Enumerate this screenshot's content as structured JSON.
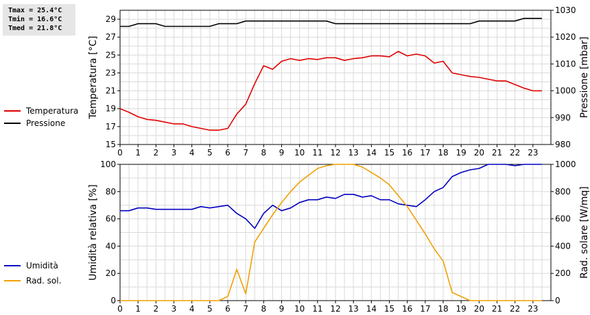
{
  "stats": {
    "tmax": "Tmax = 25.4°C",
    "tmin": "Tmin = 16.6°C",
    "tmed": "Tmed = 21.8°C"
  },
  "chart_data": [
    {
      "type": "line",
      "xlim": [
        0,
        24
      ],
      "x_ticks": [
        "0",
        "1",
        "2",
        "3",
        "4",
        "5",
        "6",
        "7",
        "8",
        "9",
        "10",
        "11",
        "12",
        "13",
        "14",
        "15",
        "16",
        "17",
        "18",
        "19",
        "20",
        "21",
        "22",
        "23"
      ],
      "ylabel_left": "Temperatura [°C]",
      "ylabel_right": "Pressione [mbar]",
      "ylim_left": [
        15,
        30
      ],
      "ylim_right": [
        980,
        1030
      ],
      "yticks_left": [
        "15",
        "17",
        "19",
        "21",
        "23",
        "25",
        "27",
        "29"
      ],
      "yticks_right": [
        "980",
        "990",
        "1000",
        "1010",
        "1020",
        "1030"
      ],
      "grid": true,
      "series": [
        {
          "name": "Temperatura",
          "color": "#e00000",
          "axis": "left",
          "x": [
            0,
            0.5,
            1,
            1.5,
            2,
            2.5,
            3,
            3.5,
            4,
            4.5,
            5,
            5.5,
            6,
            6.5,
            7,
            7.5,
            8,
            8.5,
            9,
            9.5,
            10,
            10.5,
            11,
            11.5,
            12,
            12.5,
            13,
            13.5,
            14,
            14.5,
            15,
            15.5,
            16,
            16.5,
            17,
            17.5,
            18,
            18.5,
            19,
            19.5,
            20,
            20.5,
            21,
            21.5,
            22,
            22.5,
            23,
            23.5
          ],
          "y": [
            19.0,
            18.6,
            18.1,
            17.8,
            17.7,
            17.5,
            17.3,
            17.3,
            17.0,
            16.8,
            16.6,
            16.6,
            16.8,
            18.4,
            19.5,
            21.8,
            23.8,
            23.4,
            24.3,
            24.6,
            24.4,
            24.6,
            24.5,
            24.7,
            24.7,
            24.4,
            24.6,
            24.7,
            24.9,
            24.9,
            24.8,
            25.4,
            24.9,
            25.1,
            24.9,
            24.1,
            24.3,
            23.0,
            22.8,
            22.6,
            22.5,
            22.3,
            22.1,
            22.1,
            21.7,
            21.3,
            21.0,
            21.0
          ]
        },
        {
          "name": "Pressione",
          "color": "#000000",
          "axis": "right",
          "x": [
            0,
            0.5,
            1,
            1.5,
            2,
            2.5,
            3,
            3.5,
            4,
            4.5,
            5,
            5.5,
            6,
            6.5,
            7,
            7.5,
            8,
            8.5,
            9,
            9.5,
            10,
            10.5,
            11,
            11.5,
            12,
            12.5,
            13,
            13.5,
            14,
            14.5,
            15,
            15.5,
            16,
            16.5,
            17,
            17.5,
            18,
            18.5,
            19,
            19.5,
            20,
            20.5,
            21,
            21.5,
            22,
            22.5,
            23,
            23.5
          ],
          "y": [
            1024,
            1024,
            1025,
            1025,
            1025,
            1024,
            1024,
            1024,
            1024,
            1024,
            1024,
            1025,
            1025,
            1025,
            1026,
            1026,
            1026,
            1026,
            1026,
            1026,
            1026,
            1026,
            1026,
            1026,
            1025,
            1025,
            1025,
            1025,
            1025,
            1025,
            1025,
            1025,
            1025,
            1025,
            1025,
            1025,
            1025,
            1025,
            1025,
            1025,
            1026,
            1026,
            1026,
            1026,
            1026,
            1027,
            1027,
            1027
          ]
        }
      ]
    },
    {
      "type": "line",
      "xlim": [
        0,
        24
      ],
      "x_ticks": [
        "0",
        "1",
        "2",
        "3",
        "4",
        "5",
        "6",
        "7",
        "8",
        "9",
        "10",
        "11",
        "12",
        "13",
        "14",
        "15",
        "16",
        "17",
        "18",
        "19",
        "20",
        "21",
        "22",
        "23"
      ],
      "ylabel_left": "Umidità relativa [%]",
      "ylabel_right": "Rad. solare [W/mq]",
      "ylim_left": [
        0,
        100
      ],
      "ylim_right": [
        0,
        1000
      ],
      "yticks_left": [
        "0",
        "20",
        "40",
        "60",
        "80",
        "100"
      ],
      "yticks_right": [
        "0",
        "200",
        "400",
        "600",
        "800",
        "1000"
      ],
      "grid": true,
      "series": [
        {
          "name": "Umidità",
          "color": "#0000c0",
          "axis": "left",
          "x": [
            0,
            0.5,
            1,
            1.5,
            2,
            2.5,
            3,
            3.5,
            4,
            4.5,
            5,
            5.5,
            6,
            6.5,
            7,
            7.5,
            8,
            8.5,
            9,
            9.5,
            10,
            10.5,
            11,
            11.5,
            12,
            12.5,
            13,
            13.5,
            14,
            14.5,
            15,
            15.5,
            16,
            16.5,
            17,
            17.5,
            18,
            18.5,
            19,
            19.5,
            20,
            20.5,
            21,
            21.5,
            22,
            22.5,
            23,
            23.5
          ],
          "y": [
            66,
            66,
            68,
            68,
            67,
            67,
            67,
            67,
            67,
            69,
            68,
            69,
            70,
            64,
            60,
            53,
            64,
            70,
            66,
            68,
            72,
            74,
            74,
            76,
            75,
            78,
            78,
            76,
            77,
            74,
            74,
            71,
            70,
            69,
            74,
            80,
            83,
            91,
            94,
            96,
            97,
            100,
            100,
            100,
            99,
            100,
            100,
            100
          ]
        },
        {
          "name": "Rad. sol.",
          "color": "#f0a000",
          "axis": "right",
          "x": [
            0,
            0.5,
            1,
            1.5,
            2,
            2.5,
            3,
            3.5,
            4,
            4.5,
            5,
            5.5,
            6,
            6.5,
            7,
            7.5,
            8,
            8.5,
            9,
            9.5,
            10,
            10.5,
            11,
            11.5,
            12,
            12.5,
            13,
            13.5,
            14,
            14.5,
            15,
            15.5,
            16,
            16.5,
            17,
            17.5,
            18,
            18.5,
            19,
            19.5,
            20,
            20.5,
            21,
            21.5,
            22,
            22.5,
            23,
            23.5
          ],
          "y": [
            0,
            0,
            0,
            0,
            0,
            0,
            0,
            0,
            0,
            0,
            0,
            0,
            30,
            230,
            50,
            430,
            530,
            630,
            720,
            800,
            870,
            920,
            970,
            990,
            1000,
            1000,
            1000,
            980,
            940,
            900,
            850,
            770,
            690,
            590,
            490,
            380,
            290,
            60,
            30,
            0,
            0,
            0,
            0,
            0,
            0,
            0,
            0,
            0
          ]
        }
      ]
    }
  ],
  "legend": {
    "top": [
      {
        "label": "Temperatura",
        "color": "#e00000"
      },
      {
        "label": "Pressione",
        "color": "#000000"
      }
    ],
    "bottom": [
      {
        "label": "Umidità",
        "color": "#0000c0"
      },
      {
        "label": "Rad. sol.",
        "color": "#f0a000"
      }
    ]
  }
}
